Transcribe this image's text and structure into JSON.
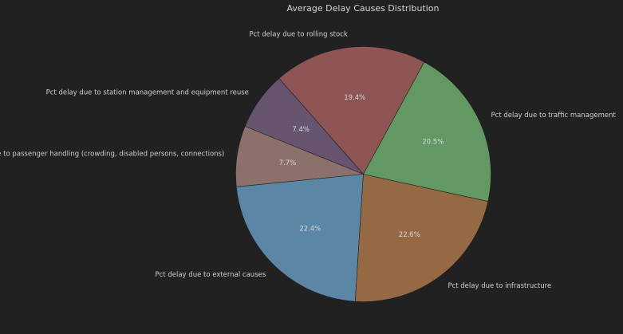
{
  "chart_data": {
    "type": "pie",
    "title": "Average Delay Causes Distribution",
    "slices": [
      {
        "label": "Pct delay due to rolling stock",
        "value": 19.4,
        "display": "19.4%",
        "color": "#8f5454"
      },
      {
        "label": "Pct delay due to station management and equipment reuse",
        "value": 7.4,
        "display": "7.4%",
        "color": "#675570"
      },
      {
        "label": "Pct delay due to passenger handling (crowding, disabled persons, connections)",
        "value": 7.7,
        "display": "7.7%",
        "color": "#8b706c"
      },
      {
        "label": "Pct delay due to external causes",
        "value": 22.4,
        "display": "22.4%",
        "color": "#5b86a6"
      },
      {
        "label": "Pct delay due to infrastructure",
        "value": 22.6,
        "display": "22.6%",
        "color": "#946944"
      },
      {
        "label": "Pct delay due to traffic management",
        "value": 20.5,
        "display": "20.5%",
        "color": "#629963"
      }
    ],
    "start_angle": 61.5,
    "direction": "counterclockwise"
  }
}
